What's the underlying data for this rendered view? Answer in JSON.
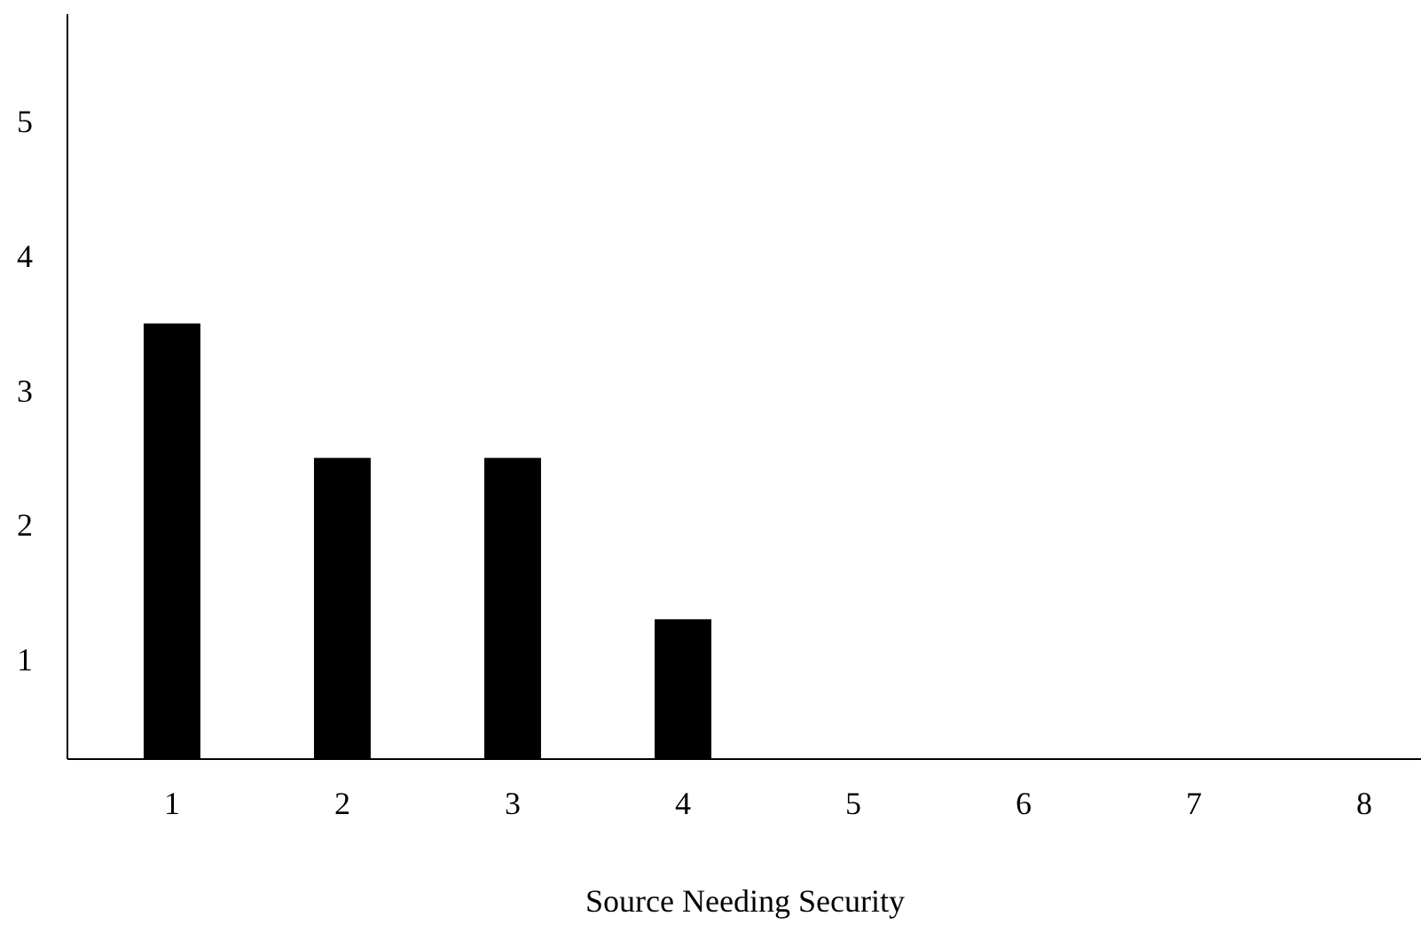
{
  "chart_data": {
    "type": "bar",
    "xlabel": "Source Needing Security",
    "categories": [
      "1",
      "2",
      "3",
      "4",
      "5",
      "6",
      "7",
      "8"
    ],
    "values": [
      3.5,
      2.5,
      2.5,
      1.3,
      null,
      null,
      null,
      null
    ],
    "color": "#000000",
    "ylim": [
      0.26,
      5.8
    ],
    "yticks": [
      1,
      2,
      3,
      4,
      5
    ]
  }
}
